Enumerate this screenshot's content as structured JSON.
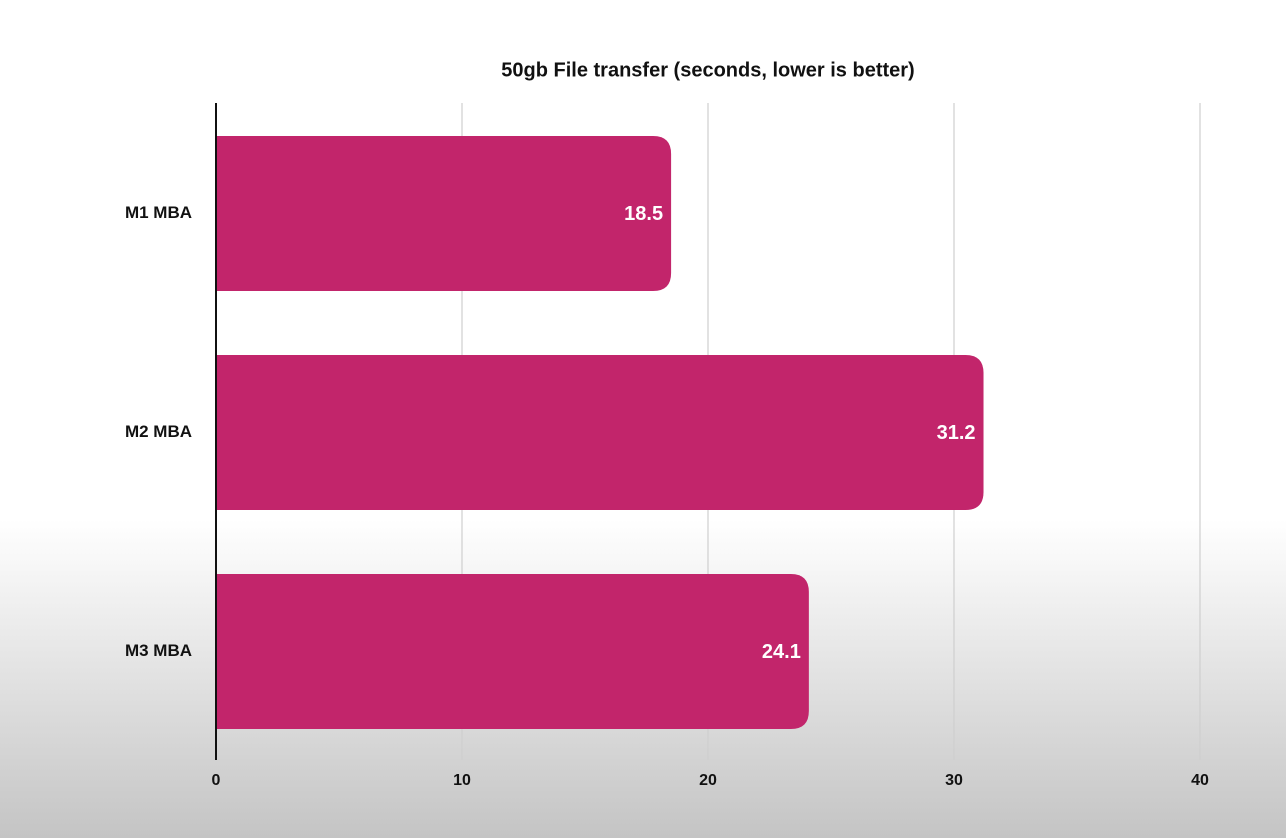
{
  "chart_data": {
    "type": "hbar",
    "title": "50gb File transfer (seconds, lower is better)",
    "categories": [
      "M1 MBA",
      "M2 MBA",
      "M3 MBA"
    ],
    "values": [
      18.5,
      31.2,
      24.1
    ],
    "color": "#c2256b",
    "xlim": [
      0,
      40
    ],
    "xticks": [
      0,
      10,
      20,
      30,
      40
    ],
    "grid": true
  }
}
